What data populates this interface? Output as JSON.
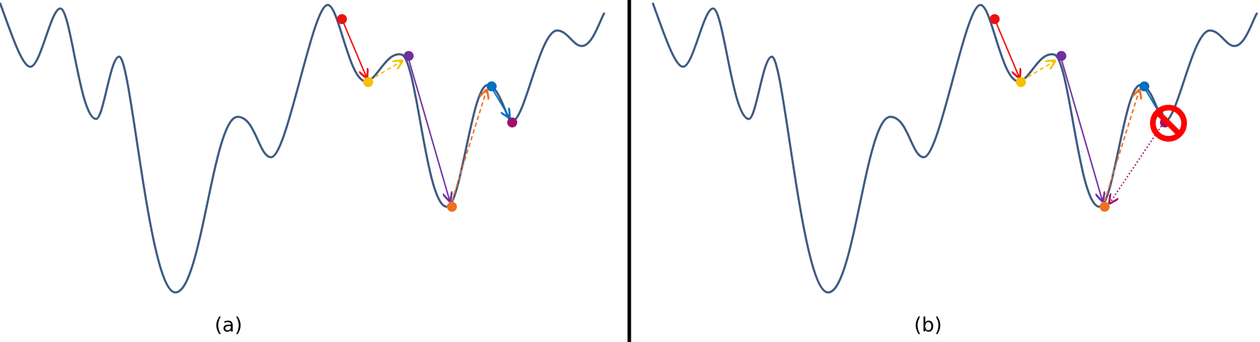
{
  "panels": [
    {
      "id": "a",
      "caption": "(a)"
    },
    {
      "id": "b",
      "caption": "(b)"
    }
  ],
  "colors": {
    "curve": "#3c5a82",
    "divider": "#000000",
    "red": "#ee1111",
    "yellow": "#f8c000",
    "purple": "#7030a0",
    "orange": "#f07020",
    "blue": "#0070c0",
    "magenta": "#a0106a",
    "forbid": "#ff0000"
  },
  "legend_icons": {
    "forbidden": "prohibited-icon"
  }
}
